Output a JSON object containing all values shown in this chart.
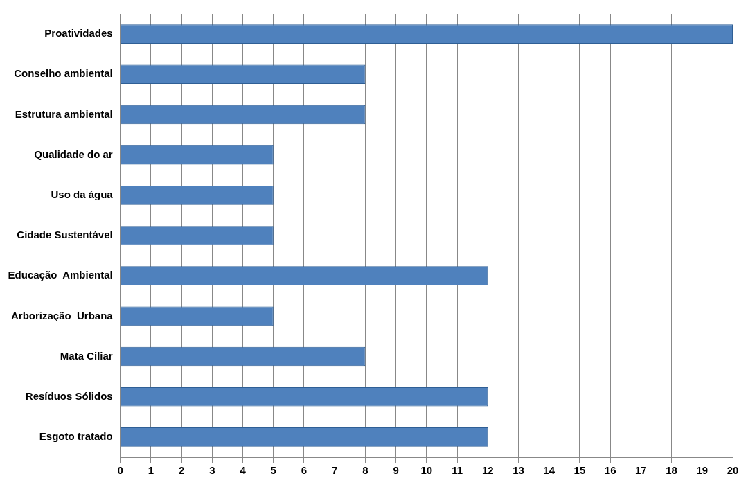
{
  "chart_data": {
    "type": "bar",
    "orientation": "horizontal",
    "categories": [
      "Proatividades",
      "Conselho ambiental",
      "Estrutura ambiental",
      "Qualidade do ar",
      "Uso da água",
      "Cidade Sustentável",
      "Educação  Ambiental",
      "Arborização  Urbana",
      "Mata Ciliar",
      "Resíduos Sólidos",
      "Esgoto tratado"
    ],
    "values": [
      20,
      8,
      8,
      5,
      5,
      5,
      12,
      5,
      8,
      12,
      12
    ],
    "color": "#4f81bd",
    "xlim": [
      0,
      20
    ],
    "xticks": [
      0,
      1,
      2,
      3,
      4,
      5,
      6,
      7,
      8,
      9,
      10,
      11,
      12,
      13,
      14,
      15,
      16,
      17,
      18,
      19,
      20
    ],
    "grid": "x",
    "legend": false
  }
}
